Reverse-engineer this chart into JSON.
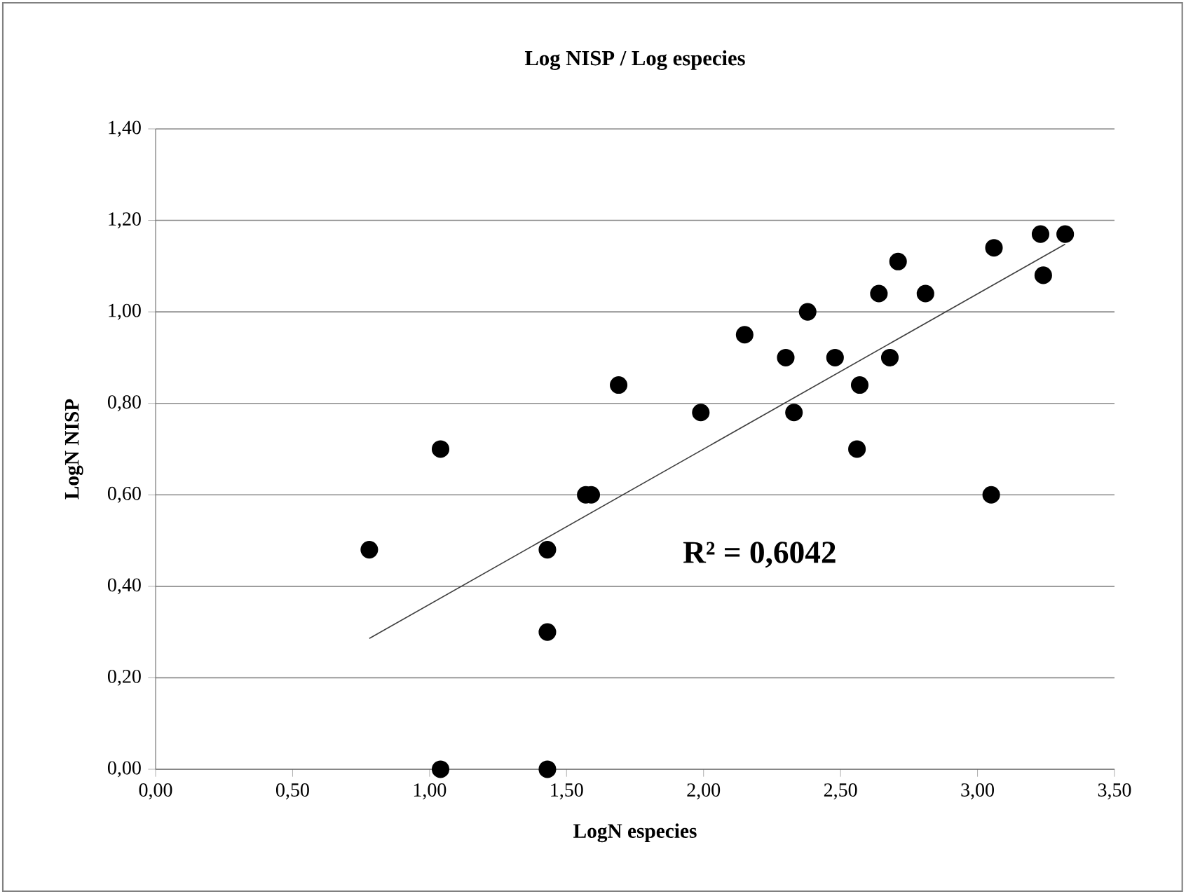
{
  "chart_data": {
    "type": "scatter",
    "title": "Log NISP / Log especies",
    "xlabel": "LogN especies",
    "ylabel": "LogN NISP",
    "annotations": [
      "R² = 0,6042"
    ],
    "series": [
      {
        "color": "#000000",
        "marker": "circle",
        "x": [
          0.78,
          1.04,
          1.04,
          1.43,
          1.43,
          1.43,
          1.57,
          1.59,
          1.69,
          1.99,
          2.15,
          2.3,
          2.33,
          2.38,
          2.48,
          2.56,
          2.57,
          2.64,
          2.68,
          2.71,
          2.81,
          3.05,
          3.06,
          3.23,
          3.24,
          3.32
        ],
        "values": [
          0.48,
          0.7,
          0.0,
          0.48,
          0.3,
          0.0,
          0.6,
          0.6,
          0.84,
          0.78,
          0.95,
          0.9,
          0.78,
          1.0,
          0.9,
          0.7,
          0.84,
          1.04,
          0.9,
          1.11,
          1.04,
          0.6,
          1.14,
          1.17,
          1.08,
          1.17
        ]
      },
      {
        "type": "line",
        "color": "#404040",
        "marker": "none",
        "x": [
          0.78,
          3.32
        ],
        "values": [
          0.286,
          1.148
        ]
      }
    ],
    "xlim": [
      0,
      3.5
    ],
    "ylim": [
      0,
      1.4
    ],
    "xticks": [
      {
        "value": 0,
        "label": "0,00"
      },
      {
        "value": 0.5,
        "label": "0,50"
      },
      {
        "value": 1.0,
        "label": "1,00"
      },
      {
        "value": 1.5,
        "label": "1,50"
      },
      {
        "value": 2.0,
        "label": "2,00"
      },
      {
        "value": 2.5,
        "label": "2,50"
      },
      {
        "value": 3.0,
        "label": "3,00"
      },
      {
        "value": 3.5,
        "label": "3,50"
      }
    ],
    "yticks": [
      {
        "value": 0,
        "label": "0,00"
      },
      {
        "value": 0.2,
        "label": "0,20"
      },
      {
        "value": 0.4,
        "label": "0,40"
      },
      {
        "value": 0.6,
        "label": "0,60"
      },
      {
        "value": 0.8,
        "label": "0,80"
      },
      {
        "value": 1.0,
        "label": "1,00"
      },
      {
        "value": 1.2,
        "label": "1,20"
      },
      {
        "value": 1.4,
        "label": "1,40"
      }
    ],
    "grid": "y"
  }
}
